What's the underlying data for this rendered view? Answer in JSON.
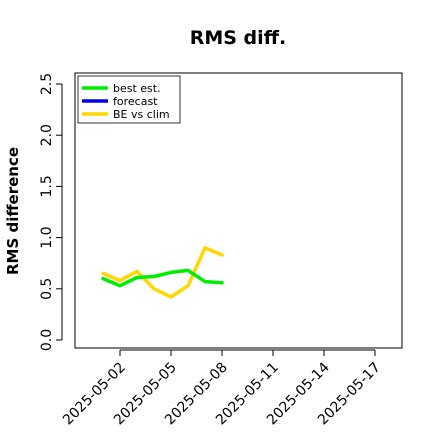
{
  "chart_data": {
    "type": "line",
    "title": "RMS diff.",
    "xlabel": "",
    "ylabel": "RMS difference",
    "ylim": [
      0,
      2.6
    ],
    "yticks": [
      0.0,
      0.5,
      1.0,
      1.5,
      2.0,
      2.5
    ],
    "ytick_labels": [
      "0.0",
      "0.5",
      "1.0",
      "1.5",
      "2.0",
      "2.5"
    ],
    "xlim": [
      "2025-04-29",
      "2025-05-19"
    ],
    "xticks": [
      "2025-05-02",
      "2025-05-05",
      "2025-05-08",
      "2025-05-11",
      "2025-05-14",
      "2025-05-17"
    ],
    "xtick_labels": [
      "2025-05-02",
      "2025-05-05",
      "2025-05-08",
      "2025-05-11",
      "2025-05-14",
      "2025-05-17"
    ],
    "highlight_xtick": "2025-05-08",
    "highlight_color": "#228B22",
    "grid": false,
    "legend_position": "top-left",
    "series": [
      {
        "name": "best est.",
        "color": "#00ee00",
        "x": [
          "2025-05-01",
          "2025-05-02",
          "2025-05-03",
          "2025-05-04",
          "2025-05-05",
          "2025-05-06",
          "2025-05-07",
          "2025-05-08"
        ],
        "values": [
          0.6,
          0.53,
          0.61,
          0.62,
          0.66,
          0.68,
          0.57,
          0.56
        ]
      },
      {
        "name": "forecast",
        "color": "#0000ee",
        "x": [],
        "values": []
      },
      {
        "name": "BE vs clim",
        "color": "#ffd700",
        "x": [
          "2025-05-01",
          "2025-05-02",
          "2025-05-03",
          "2025-05-04",
          "2025-05-05",
          "2025-05-06",
          "2025-05-07",
          "2025-05-08"
        ],
        "values": [
          0.65,
          0.58,
          0.67,
          0.5,
          0.42,
          0.53,
          0.9,
          0.83
        ]
      }
    ]
  }
}
